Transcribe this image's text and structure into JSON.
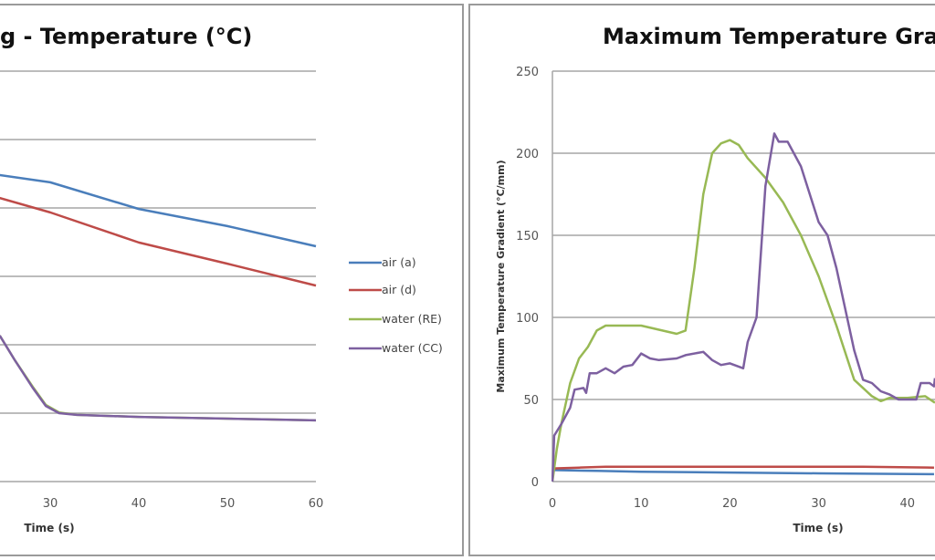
{
  "colors": {
    "air_a": "#4a7ebb",
    "air_d": "#be4b48",
    "water_re": "#98b954",
    "water_cc": "#7d60a0",
    "grid": "#a6a6a6",
    "border": "#9a9a9a"
  },
  "chart_data": [
    {
      "type": "line",
      "title": "g - Temperature (°C)",
      "xlabel": "Time (s)",
      "ylabel": "",
      "xticks": [
        "30",
        "40",
        "50",
        "60"
      ],
      "xlim": [
        24.3,
        60
      ],
      "ylim": [
        0,
        1200
      ],
      "grid": true,
      "legend_placement": "right",
      "series": [
        {
          "name": "air (a)",
          "color_key": "air_a",
          "x": [
            24.3,
            30,
            40,
            50,
            60
          ],
          "y": [
            896,
            875,
            797,
            747,
            688
          ]
        },
        {
          "name": "air (d)",
          "color_key": "air_d",
          "x": [
            24.3,
            30,
            40,
            50,
            60
          ],
          "y": [
            829,
            787,
            699,
            637,
            573
          ]
        },
        {
          "name": "water (RE)",
          "color_key": "water_re",
          "x": [
            24.3,
            26,
            28,
            29.5,
            31,
            33,
            40,
            50,
            60
          ],
          "y": [
            427,
            355,
            278,
            224,
            202,
            195,
            189,
            184,
            179
          ]
        },
        {
          "name": "water (CC)",
          "color_key": "water_cc",
          "x": [
            24.3,
            26,
            28,
            29.5,
            31,
            33,
            40,
            50,
            60
          ],
          "y": [
            427,
            355,
            275,
            221,
            200,
            195,
            189,
            184,
            179
          ]
        }
      ]
    },
    {
      "type": "line",
      "title": "Maximum Temperature Grad",
      "xlabel": "Time (s)",
      "ylabel": "Maximum Temperature Gradient (°C/mm)",
      "xticks": [
        "0",
        "10",
        "20",
        "30",
        "40"
      ],
      "yticks": [
        "0",
        "50",
        "100",
        "150",
        "200",
        "250"
      ],
      "xlim": [
        0,
        43.1
      ],
      "ylim": [
        0,
        250
      ],
      "grid": true,
      "series": [
        {
          "color_key": "air_a",
          "x": [
            0,
            5,
            10,
            20,
            30,
            43
          ],
          "y": [
            7,
            6.5,
            6,
            5.5,
            5,
            4.5
          ]
        },
        {
          "color_key": "air_d",
          "x": [
            0,
            3,
            6,
            20,
            35,
            43
          ],
          "y": [
            8,
            8.5,
            9,
            9,
            9,
            8.5
          ]
        },
        {
          "color_key": "water_re",
          "x": [
            0,
            0.5,
            1,
            2,
            3,
            4,
            5,
            6,
            10,
            14,
            15,
            16,
            17,
            18,
            19,
            20,
            21,
            22,
            24,
            26,
            28,
            30,
            32,
            34,
            36,
            37,
            38,
            40,
            42,
            43.1
          ],
          "y": [
            0,
            20,
            35,
            60,
            75,
            82,
            92,
            95,
            95,
            90,
            92,
            130,
            175,
            200,
            206,
            208,
            205,
            197,
            185,
            170,
            150,
            125,
            95,
            62,
            52,
            49,
            51,
            51,
            52,
            48
          ]
        },
        {
          "color_key": "water_cc",
          "x": [
            0,
            0.2,
            1,
            2,
            2.5,
            3.5,
            3.8,
            4.2,
            5,
            6,
            7,
            8,
            9,
            10,
            11,
            12,
            14,
            15,
            17,
            18,
            19,
            20,
            21.5,
            22,
            23,
            24,
            25,
            25.5,
            26.5,
            28,
            29,
            30,
            31,
            32,
            33,
            34,
            35,
            36,
            37,
            38,
            39,
            41,
            41.5,
            42.5,
            43,
            43.1
          ],
          "y": [
            0,
            28,
            35,
            45,
            56,
            57,
            54,
            66,
            66,
            69,
            66,
            70,
            71,
            78,
            75,
            74,
            75,
            77,
            79,
            74,
            71,
            72,
            69,
            85,
            100,
            180,
            212,
            207,
            207,
            192,
            175,
            158,
            150,
            130,
            105,
            80,
            62,
            60,
            55,
            53,
            50,
            50,
            60,
            60,
            58,
            63
          ]
        }
      ]
    }
  ]
}
